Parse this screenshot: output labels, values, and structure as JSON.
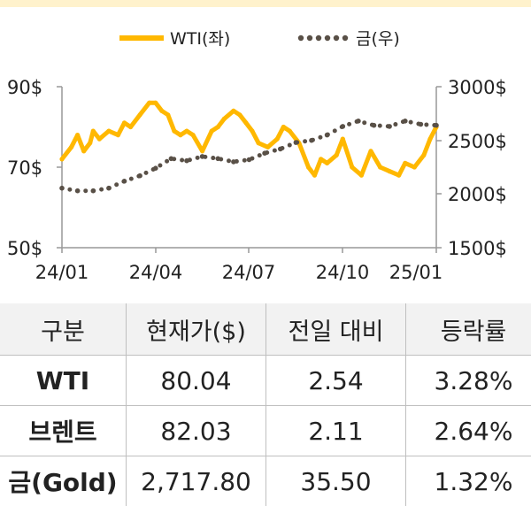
{
  "colors": {
    "wti": "#FFB800",
    "gold": "#595047",
    "header_bg": "#f2f2f2",
    "top_band": "#FFF2CC"
  },
  "chart_data": {
    "type": "line",
    "legend": {
      "position": "top-right",
      "items": [
        "WTI(좌)",
        "금(우)"
      ]
    },
    "x_tick_labels": [
      "24/01",
      "24/04",
      "24/07",
      "24/10",
      "25/01"
    ],
    "y_left": {
      "ticks": [
        "90$",
        "70$",
        "50$"
      ],
      "range": [
        50,
        90
      ]
    },
    "y_right": {
      "ticks": [
        "3000$",
        "2500$",
        "2000$",
        "1500$"
      ],
      "range": [
        1500,
        3000
      ]
    },
    "x_range": [
      0,
      12
    ],
    "series": [
      {
        "name": "WTI(좌)",
        "axis": "left",
        "style": "solid",
        "x": [
          0,
          0.3,
          0.5,
          0.7,
          0.9,
          1.0,
          1.2,
          1.5,
          1.8,
          2.0,
          2.2,
          2.5,
          2.8,
          3.0,
          3.2,
          3.4,
          3.6,
          3.8,
          4.0,
          4.2,
          4.5,
          4.8,
          5.0,
          5.2,
          5.5,
          5.7,
          5.9,
          6.1,
          6.3,
          6.6,
          6.9,
          7.1,
          7.3,
          7.6,
          7.9,
          8.1,
          8.3,
          8.5,
          8.8,
          9.0,
          9.3,
          9.6,
          9.9,
          10.2,
          10.5,
          10.8,
          11.0,
          11.3,
          11.6,
          11.8,
          12.0
        ],
        "values": [
          72,
          75,
          78,
          74,
          76,
          79,
          77,
          79,
          78,
          81,
          80,
          83,
          86,
          86,
          84,
          83,
          79,
          78,
          79,
          78,
          74,
          79,
          80,
          82,
          84,
          83,
          81,
          79,
          76,
          75,
          77,
          80,
          79,
          76,
          70,
          68,
          72,
          71,
          73,
          77,
          70,
          68,
          74,
          70,
          69,
          68,
          71,
          70,
          73,
          77,
          80
        ]
      },
      {
        "name": "금(우)",
        "axis": "right",
        "style": "dotted",
        "x": [
          0,
          0.5,
          1.0,
          1.5,
          2.0,
          2.5,
          3.0,
          3.5,
          4.0,
          4.5,
          5.0,
          5.5,
          6.0,
          6.5,
          7.0,
          7.5,
          8.0,
          8.5,
          9.0,
          9.5,
          10.0,
          10.5,
          11.0,
          11.5,
          12.0
        ],
        "values": [
          2055,
          2030,
          2030,
          2055,
          2120,
          2170,
          2240,
          2330,
          2310,
          2350,
          2330,
          2300,
          2320,
          2380,
          2420,
          2480,
          2500,
          2550,
          2630,
          2680,
          2640,
          2630,
          2680,
          2650,
          2640
        ]
      }
    ]
  },
  "table": {
    "headers": [
      "구분",
      "현재가($)",
      "전일 대비",
      "등락률"
    ],
    "rows": [
      [
        "WTI",
        "80.04",
        "2.54",
        "3.28%"
      ],
      [
        "브렌트",
        "82.03",
        "2.11",
        "2.64%"
      ],
      [
        "금(Gold)",
        "2,717.80",
        "35.50",
        "1.32%"
      ]
    ]
  }
}
